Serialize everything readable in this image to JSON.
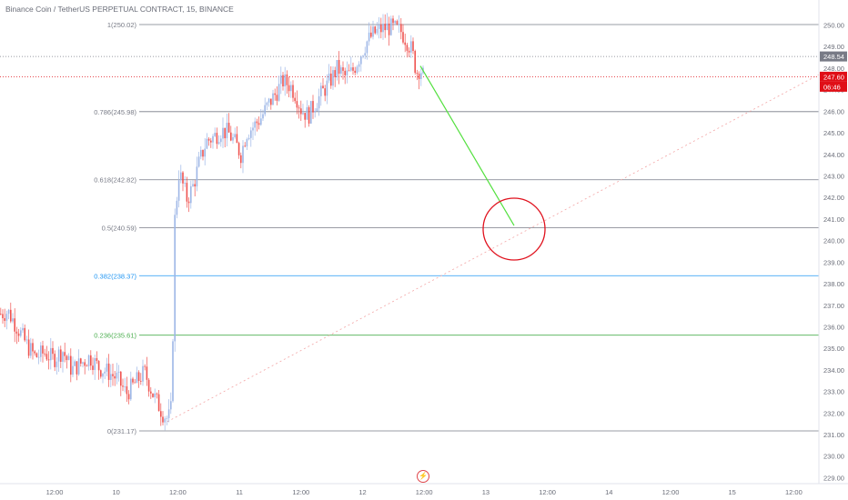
{
  "header": {
    "title": "Binance Coin / TetherUS PERPETUAL CONTRACT, 15, BINANCE"
  },
  "colors": {
    "up": "#26a69a",
    "down": "#ef5350",
    "candle_body_up": "#9db6e6",
    "candle_body_down": "#ef5350",
    "fib_gray": "#787b86",
    "fib_blue": "#2196f3",
    "fib_green": "#4caf50",
    "arrow_green": "#53e03f",
    "circle_red": "#e0121e",
    "last_price_bg": "#e00f17",
    "ref_price_bg": "#787b86"
  },
  "icons": {
    "event": "lightning-bolt-icon"
  },
  "chart_data": {
    "type": "candlestick",
    "title": "Binance Coin / TetherUS PERPETUAL CONTRACT, 15, BINANCE",
    "ylim": [
      228.6,
      251.2
    ],
    "y_ticks": [
      "229.00",
      "230.00",
      "231.00",
      "232.00",
      "233.00",
      "234.00",
      "235.00",
      "236.00",
      "237.00",
      "238.00",
      "239.00",
      "240.00",
      "241.00",
      "242.00",
      "243.00",
      "244.00",
      "245.00",
      "246.00",
      "247.00",
      "248.00",
      "249.00",
      "250.00"
    ],
    "x_ticks": [
      "12:00",
      "10",
      "12:00",
      "11",
      "12:00",
      "12",
      "12:00",
      "13",
      "12:00",
      "14",
      "12:00",
      "15",
      "12:00"
    ],
    "fib_levels": [
      {
        "label": "1(250.02)",
        "price": 250.02,
        "color": "gray"
      },
      {
        "label": "0.786(245.98)",
        "price": 245.98,
        "color": "gray"
      },
      {
        "label": "0.618(242.82)",
        "price": 242.82,
        "color": "gray"
      },
      {
        "label": "0.5(240.59)",
        "price": 240.59,
        "color": "gray"
      },
      {
        "label": "0.382(238.37)",
        "price": 238.37,
        "color": "blue"
      },
      {
        "label": "0.236(235.61)",
        "price": 235.61,
        "color": "green"
      },
      {
        "label": "0(231.17)",
        "price": 231.17,
        "color": "gray"
      }
    ],
    "price_tags": [
      {
        "text": "248.54",
        "price": 248.54,
        "kind": "ref"
      },
      {
        "text": "247.60",
        "price": 247.6,
        "kind": "last"
      },
      {
        "text": "06:46",
        "price": 247.6,
        "kind": "countdown"
      }
    ],
    "price_path": [
      [
        0,
        236.6
      ],
      [
        8,
        236.7
      ],
      [
        18,
        236.0
      ],
      [
        28,
        235.2
      ],
      [
        38,
        234.6
      ],
      [
        48,
        234.8
      ],
      [
        58,
        234.5
      ],
      [
        68,
        234.9
      ],
      [
        78,
        234.0
      ],
      [
        88,
        234.3
      ],
      [
        98,
        234.6
      ],
      [
        108,
        234.1
      ],
      [
        118,
        233.9
      ],
      [
        128,
        233.6
      ],
      [
        138,
        232.9
      ],
      [
        148,
        233.4
      ],
      [
        158,
        233.9
      ],
      [
        168,
        232.8
      ],
      [
        178,
        232.0
      ],
      [
        184,
        231.7
      ],
      [
        188,
        232.3
      ],
      [
        191,
        240.8
      ],
      [
        196,
        243.2
      ],
      [
        200,
        242.6
      ],
      [
        205,
        241.9
      ],
      [
        212,
        242.6
      ],
      [
        218,
        243.6
      ],
      [
        226,
        244.6
      ],
      [
        234,
        244.8
      ],
      [
        242,
        245.1
      ],
      [
        250,
        245.0
      ],
      [
        258,
        244.5
      ],
      [
        264,
        244.0
      ],
      [
        270,
        245.0
      ],
      [
        278,
        245.3
      ],
      [
        286,
        245.7
      ],
      [
        294,
        246.3
      ],
      [
        302,
        246.8
      ],
      [
        310,
        247.4
      ],
      [
        318,
        247.2
      ],
      [
        324,
        246.8
      ],
      [
        330,
        246.1
      ],
      [
        338,
        245.8
      ],
      [
        346,
        246.4
      ],
      [
        354,
        246.9
      ],
      [
        362,
        247.4
      ],
      [
        370,
        248.0
      ],
      [
        378,
        247.6
      ],
      [
        386,
        247.8
      ],
      [
        394,
        248.5
      ],
      [
        402,
        249.2
      ],
      [
        410,
        249.6
      ],
      [
        418,
        249.8
      ],
      [
        426,
        249.9
      ],
      [
        434,
        249.8
      ],
      [
        440,
        249.7
      ],
      [
        446,
        249.3
      ],
      [
        452,
        248.8
      ],
      [
        457,
        247.8
      ],
      [
        461,
        248.0
      ],
      [
        465,
        247.6
      ]
    ]
  }
}
